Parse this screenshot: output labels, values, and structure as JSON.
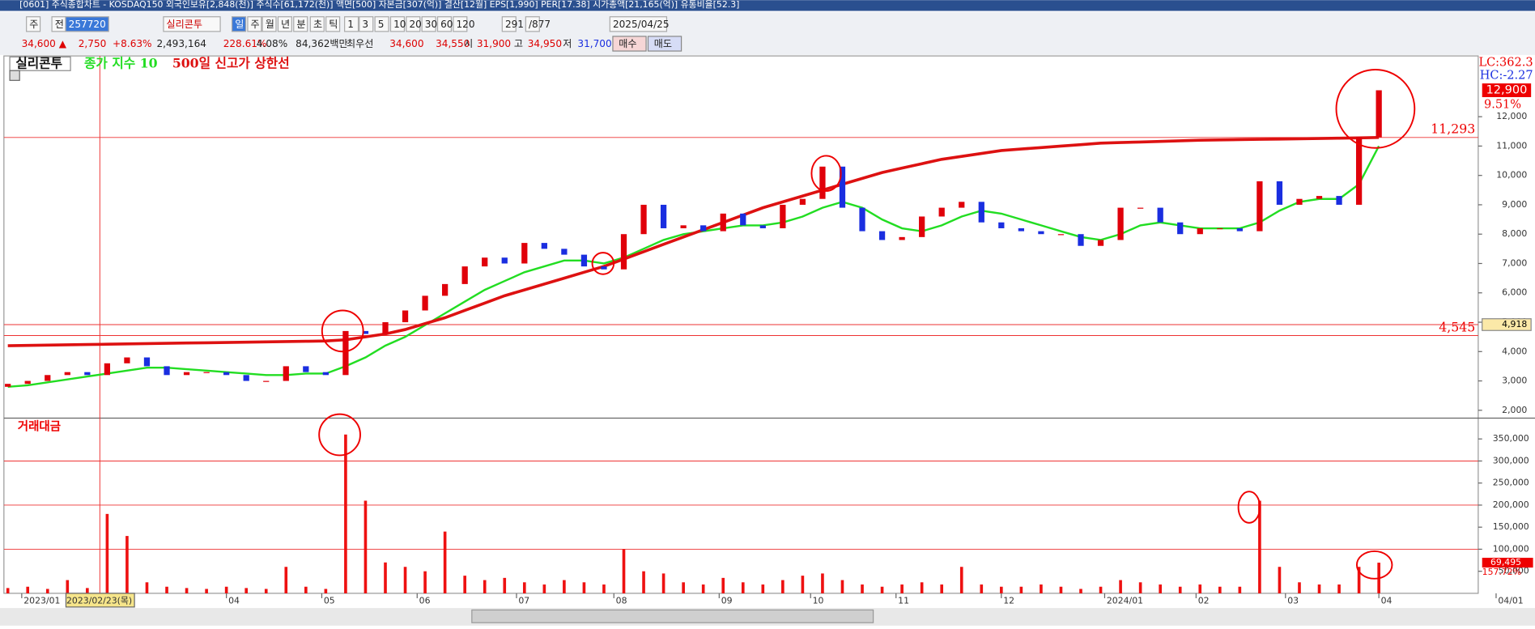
{
  "header": {
    "title": "[0601] 주식종합차트 - KOSDAQ150 외국인보유[2,848(천)] 주식수[61,172(천)] 액면[500] 자본금[307(억)] 결산[12월] EPS[1,990] PER[17.38] 시가총액[21,165(억)] 유통비율[52.3]",
    "toolbar": [
      "주",
      "전",
      "257720",
      "실리콘투",
      "일",
      "주",
      "월",
      "년",
      "분",
      "초",
      "틱",
      "1",
      "3",
      "5",
      "10",
      "20",
      "30",
      "60",
      "120",
      "291",
      "/877",
      "2025/04/25"
    ],
    "quote": [
      "34,600 ▲",
      "2,750",
      "+8.63%",
      "2,493,164",
      "228.61%",
      "4.08%",
      "84,362백만",
      "최우선",
      "34,600",
      "34,550",
      "시",
      "31,900",
      "고",
      "34,950",
      "저",
      "31,700",
      "매수",
      "매도"
    ]
  },
  "chart_data": [
    {
      "type": "candlestick",
      "legend": [
        "실리콘투"
      ],
      "series": [
        {
          "name": "실리콘투",
          "up_color": "#e0000a",
          "down_color": "#1a2ee0",
          "open": [
            2800,
            2900,
            3000,
            3200,
            3300,
            3200,
            3600,
            3800,
            3500,
            3200,
            3300,
            3300,
            3200,
            3000,
            3000,
            3500,
            3300,
            3200,
            4700,
            4600,
            5000,
            5400,
            5900,
            6300,
            6900,
            7200,
            7000,
            7700,
            7500,
            7300,
            6900,
            6800,
            8000,
            9000,
            8200,
            8300,
            8100,
            8700,
            8300,
            8200,
            9000,
            9200,
            10300,
            8900,
            8100,
            7800,
            7900,
            8600,
            8900,
            9100,
            8400,
            8200,
            8100,
            8000,
            8000,
            7600,
            7800,
            8900,
            8900,
            8400,
            8000,
            8200,
            8200,
            8100,
            9800,
            9000,
            9200,
            9300,
            9000,
            11300
          ],
          "close": [
            2900,
            3000,
            3200,
            3300,
            3200,
            3600,
            3800,
            3500,
            3200,
            3300,
            3300,
            3200,
            3000,
            3000,
            3500,
            3300,
            3200,
            4700,
            4600,
            5000,
            5400,
            5900,
            6300,
            6900,
            7200,
            7000,
            7700,
            7500,
            7300,
            6900,
            6800,
            8000,
            9000,
            8200,
            8300,
            8100,
            8700,
            8300,
            8200,
            9000,
            9200,
            10300,
            8900,
            8100,
            7800,
            7900,
            8600,
            8900,
            9100,
            8400,
            8200,
            8100,
            8000,
            8000,
            7600,
            7800,
            8900,
            8900,
            8400,
            8000,
            8200,
            8200,
            8100,
            9800,
            9000,
            9200,
            9300,
            9000,
            11300,
            12900
          ]
        },
        {
          "name": "종가 지수 10",
          "color": "#22dd22",
          "values": [
            2800,
            2850,
            2950,
            3050,
            3150,
            3250,
            3350,
            3450,
            3450,
            3400,
            3350,
            3300,
            3250,
            3200,
            3200,
            3250,
            3250,
            3500,
            3800,
            4200,
            4500,
            4900,
            5300,
            5700,
            6100,
            6400,
            6700,
            6900,
            7100,
            7100,
            7000,
            7200,
            7500,
            7800,
            8000,
            8100,
            8200,
            8300,
            8300,
            8400,
            8600,
            8900,
            9100,
            8900,
            8500,
            8200,
            8100,
            8300,
            8600,
            8800,
            8700,
            8500,
            8300,
            8100,
            7900,
            7800,
            8000,
            8300,
            8400,
            8300,
            8200,
            8200,
            8200,
            8400,
            8800,
            9100,
            9200,
            9200,
            9700,
            11000
          ]
        },
        {
          "name": "500일 신고가 상한선",
          "color": "#dd1111",
          "values": [
            4200,
            4210,
            4220,
            4230,
            4240,
            4250,
            4260,
            4270,
            4280,
            4290,
            4300,
            4310,
            4320,
            4330,
            4340,
            4350,
            4360,
            4400,
            4500,
            4600,
            4750,
            4950,
            5150,
            5400,
            5650,
            5900,
            6100,
            6300,
            6500,
            6700,
            6900,
            7150,
            7400,
            7650,
            7900,
            8150,
            8400,
            8650,
            8900,
            9100,
            9300,
            9500,
            9700,
            9900,
            10100,
            10250,
            10400,
            10550,
            10650,
            10750,
            10850,
            10900,
            10950,
            11000,
            11050,
            11100,
            11120,
            11140,
            11160,
            11180,
            11200,
            11210,
            11220,
            11230,
            11240,
            11250,
            11260,
            11270,
            11280,
            11293
          ]
        }
      ],
      "xlim": [
        0,
        74
      ],
      "xticks": [
        {
          "value": 0.7,
          "label": "2023/01"
        },
        {
          "value": 4.6,
          "label": "2023/02/23(목)"
        },
        {
          "value": 11,
          "label": "04"
        },
        {
          "value": 15.8,
          "label": "05"
        },
        {
          "value": 20.6,
          "label": "06"
        },
        {
          "value": 25.6,
          "label": "07"
        },
        {
          "value": 30.5,
          "label": "08"
        },
        {
          "value": 35.8,
          "label": "09"
        },
        {
          "value": 40.4,
          "label": "10"
        },
        {
          "value": 44.7,
          "label": "11"
        },
        {
          "value": 50,
          "label": "12"
        },
        {
          "value": 55.2,
          "label": "2024/01"
        },
        {
          "value": 59.8,
          "label": "02"
        },
        {
          "value": 64.3,
          "label": "03"
        },
        {
          "value": 69,
          "label": "04"
        },
        {
          "value": 74.9,
          "label": "04/01"
        }
      ],
      "ylim": [
        1800,
        14070
      ],
      "yticks": [
        {
          "value": 2000,
          "label": "2,000"
        },
        {
          "value": 3000,
          "label": "3,000"
        },
        {
          "value": 4000,
          "label": "4,000"
        },
        {
          "value": 5000,
          "label": "5,000"
        },
        {
          "value": 6000,
          "label": "6,000"
        },
        {
          "value": 7000,
          "label": "7,000"
        },
        {
          "value": 8000,
          "label": "8,000"
        },
        {
          "value": 9000,
          "label": "9,000"
        },
        {
          "value": 10000,
          "label": "10,000"
        },
        {
          "value": 11000,
          "label": "11,000"
        },
        {
          "value": 12000,
          "label": "12,000"
        }
      ],
      "hlines": [
        {
          "value": 11293,
          "label": "11,293"
        },
        {
          "value": 4545,
          "label": "4,545"
        },
        {
          "value": 4918,
          "label": "4,918"
        }
      ],
      "last_price": {
        "value": 12900,
        "label": "12,900"
      },
      "last_change": "9.51%",
      "lc": "LC:362.3",
      "hc": "HC:-2.27"
    },
    {
      "type": "bar",
      "title": "거래대금",
      "color": "#ee1111",
      "values": [
        12000,
        15000,
        10000,
        30000,
        12000,
        180000,
        130000,
        25000,
        15000,
        12000,
        10000,
        15000,
        12000,
        10000,
        60000,
        15000,
        10000,
        360000,
        210000,
        70000,
        60000,
        50000,
        140000,
        40000,
        30000,
        35000,
        25000,
        20000,
        30000,
        25000,
        20000,
        100000,
        50000,
        45000,
        25000,
        20000,
        35000,
        25000,
        20000,
        30000,
        40000,
        45000,
        30000,
        20000,
        15000,
        20000,
        25000,
        20000,
        60000,
        20000,
        15000,
        15000,
        20000,
        15000,
        10000,
        15000,
        30000,
        25000,
        20000,
        15000,
        20000,
        15000,
        15000,
        210000,
        60000,
        25000,
        20000,
        20000,
        60000,
        69495
      ],
      "value_labels_last": {
        "value": 69495,
        "label": "69,495"
      },
      "last_ratio": "157.72%",
      "ylim": [
        0,
        395000
      ],
      "yticks": [
        {
          "value": 50000,
          "label": "50,000"
        },
        {
          "value": 100000,
          "label": "100,000"
        },
        {
          "value": 150000,
          "label": "150,000"
        },
        {
          "value": 200000,
          "label": "200,000"
        },
        {
          "value": 250000,
          "label": "250,000"
        },
        {
          "value": 300000,
          "label": "300,000"
        },
        {
          "value": 350000,
          "label": "350,000"
        }
      ],
      "grid_values": [
        100000,
        200000,
        300000
      ]
    }
  ]
}
